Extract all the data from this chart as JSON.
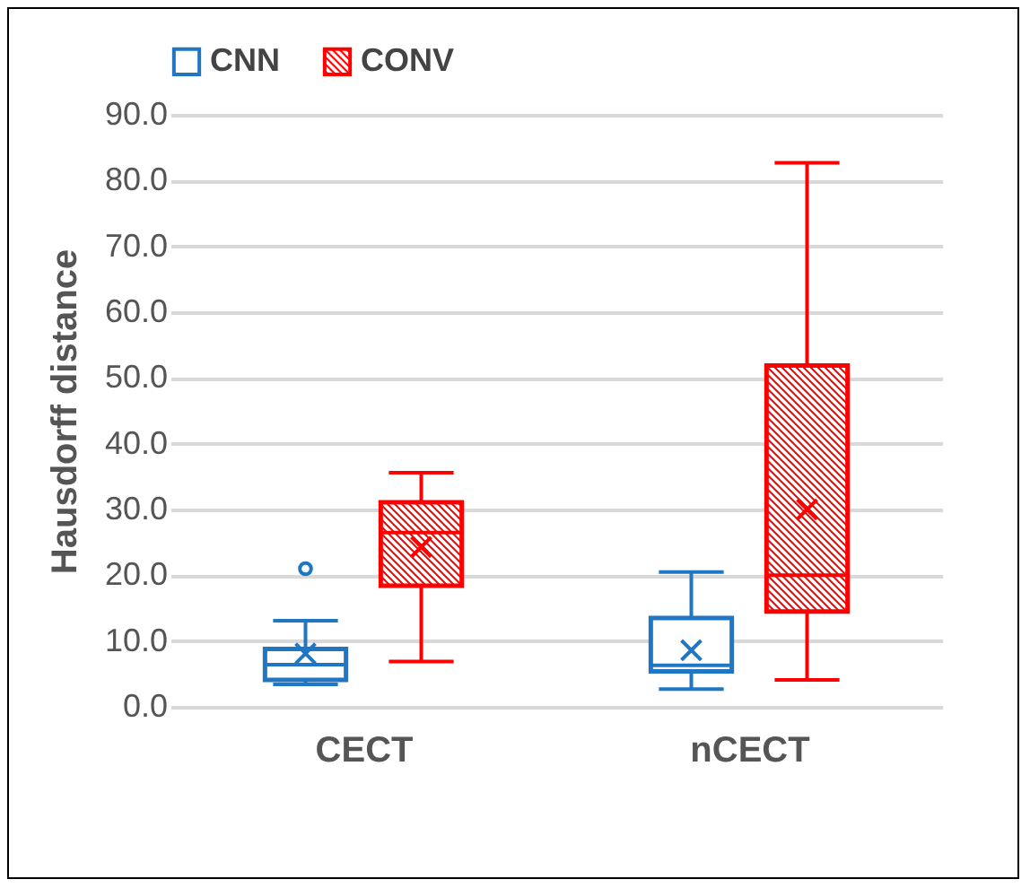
{
  "chart_data": {
    "type": "box",
    "ylabel": "Hausdorff distance",
    "categories": [
      "CECT",
      "nCECT"
    ],
    "series": [
      {
        "name": "CNN",
        "color": "#1f77c4",
        "boxes": [
          {
            "low": 3.4,
            "q1": 4.1,
            "median": 6.4,
            "q3": 8.8,
            "high": 13.1,
            "mean": 8.1,
            "outliers": [
              21.0
            ]
          },
          {
            "low": 2.7,
            "q1": 5.4,
            "median": 6.3,
            "q3": 13.5,
            "high": 20.5,
            "mean": 8.6
          }
        ]
      },
      {
        "name": "CONV",
        "color": "#ff0000",
        "boxes": [
          {
            "low": 6.9,
            "q1": 18.4,
            "median": 26.5,
            "q3": 31.1,
            "high": 35.6,
            "mean": 24.3
          },
          {
            "low": 4.1,
            "q1": 14.5,
            "median": 20.0,
            "q3": 51.9,
            "high": 82.7,
            "mean": 30.0
          }
        ]
      }
    ],
    "ylim": [
      0,
      90
    ],
    "yticks": [
      {
        "value": 0,
        "label": "0.0"
      },
      {
        "value": 10,
        "label": "10.0"
      },
      {
        "value": 20,
        "label": "20.0"
      },
      {
        "value": 30,
        "label": "30.0"
      },
      {
        "value": 40,
        "label": "40.0"
      },
      {
        "value": 50,
        "label": "50.0"
      },
      {
        "value": 60,
        "label": "60.0"
      },
      {
        "value": 70,
        "label": "70.0"
      },
      {
        "value": 80,
        "label": "80.0"
      },
      {
        "value": 90,
        "label": "90.0"
      }
    ],
    "grid": "y",
    "legend": "top"
  }
}
